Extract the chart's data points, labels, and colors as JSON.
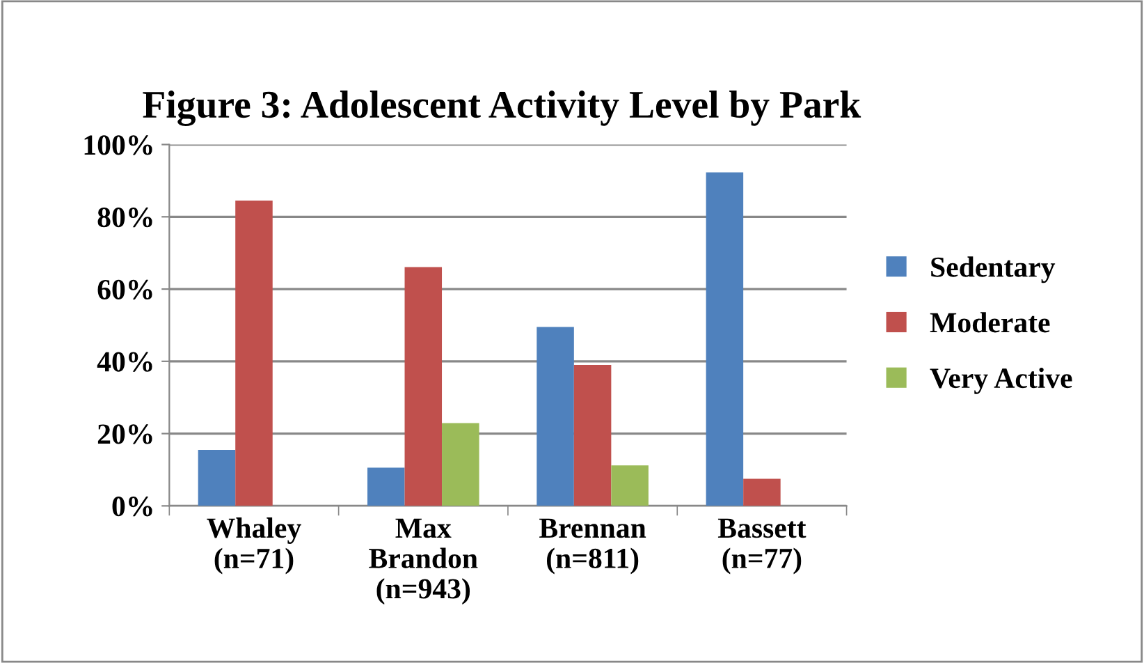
{
  "chart_data": {
    "type": "bar",
    "title": "Figure 3: Adolescent Activity Level by Park",
    "categories": [
      "Whaley\n(n=71)",
      "Max\nBrandon\n(n=943)",
      "Brennan\n(n=811)",
      "Bassett\n(n=77)"
    ],
    "series": [
      {
        "name": "Sedentary",
        "color": "#4f81bd",
        "values": [
          15.5,
          10.6,
          49.5,
          92.3
        ]
      },
      {
        "name": "Moderate",
        "color": "#c0504d",
        "values": [
          84.5,
          66.1,
          39.0,
          7.5
        ]
      },
      {
        "name": "Very Active",
        "color": "#9bbb59",
        "values": [
          0,
          22.9,
          11.2,
          0
        ]
      }
    ],
    "ylim": [
      0,
      100
    ],
    "yticks": [
      {
        "value": 0,
        "label": "0%"
      },
      {
        "value": 20,
        "label": "20%"
      },
      {
        "value": 40,
        "label": "40%"
      },
      {
        "value": 60,
        "label": "60%"
      },
      {
        "value": 80,
        "label": "80%"
      },
      {
        "value": 100,
        "label": "100%"
      }
    ],
    "grid": "y",
    "legend": "right"
  }
}
